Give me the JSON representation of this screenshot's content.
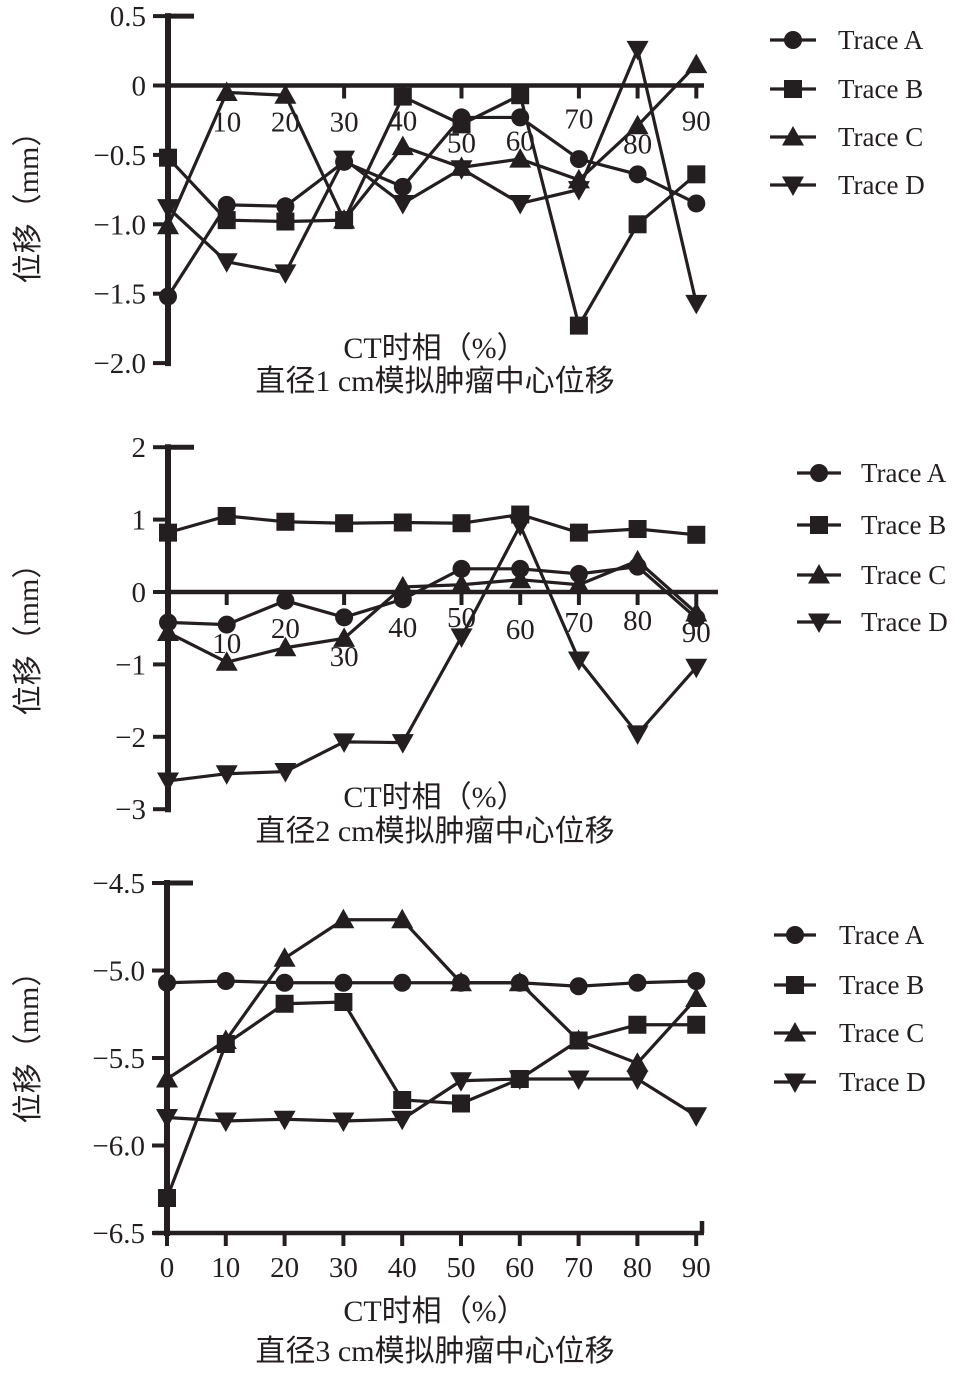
{
  "page": {
    "ink": "#231f20",
    "background": "#ffffff"
  },
  "chart_data": [
    {
      "type": "line",
      "title": "直径1 cm模拟肿瘤中心位移",
      "xlabel": "CT时相（%）",
      "ylabel": "位移（mm）",
      "x": [
        0,
        10,
        20,
        30,
        40,
        50,
        60,
        70,
        80,
        90
      ],
      "xtick_labels": [
        "10",
        "20",
        "30",
        "40",
        "50",
        "60",
        "70",
        "80",
        "90"
      ],
      "ylim": [
        -2.0,
        0.5
      ],
      "yticks": [
        0.5,
        0,
        -0.5,
        -1.0,
        -1.5,
        -2.0
      ],
      "ytick_labels": [
        "0.5",
        "0",
        "−0.5",
        "−1.0",
        "−1.5",
        "−2.0"
      ],
      "grid": false,
      "legend_position": "right",
      "series": [
        {
          "name": "Trace A",
          "marker": "circle",
          "values": [
            -1.52,
            -0.86,
            -0.87,
            -0.55,
            -0.73,
            -0.23,
            -0.23,
            -0.53,
            -0.64,
            -0.85
          ]
        },
        {
          "name": "Trace B",
          "marker": "square",
          "values": [
            -0.52,
            -0.97,
            -0.98,
            -0.97,
            -0.08,
            -0.28,
            -0.07,
            -1.73,
            -1.0,
            -0.64
          ]
        },
        {
          "name": "Trace C",
          "marker": "triangle-up",
          "values": [
            -1.01,
            -0.05,
            -0.07,
            -0.97,
            -0.44,
            -0.59,
            -0.53,
            -0.68,
            -0.29,
            0.15
          ]
        },
        {
          "name": "Trace D",
          "marker": "triangle-down",
          "values": [
            -0.88,
            -1.27,
            -1.35,
            -0.53,
            -0.85,
            -0.6,
            -0.85,
            -0.75,
            0.26,
            -1.57
          ]
        }
      ]
    },
    {
      "type": "line",
      "title": "直径2 cm模拟肿瘤中心位移",
      "xlabel": "CT时相（%）",
      "ylabel": "位移（mm）",
      "x": [
        0,
        10,
        20,
        30,
        40,
        50,
        60,
        70,
        80,
        90
      ],
      "xtick_labels": [
        "10",
        "20",
        "30",
        "40",
        "50",
        "60",
        "70",
        "80",
        "90"
      ],
      "ylim": [
        -3,
        2
      ],
      "yticks": [
        2,
        1,
        0,
        -1,
        -2,
        -3
      ],
      "ytick_labels": [
        "2",
        "1",
        "0",
        "−1",
        "−2",
        "−3"
      ],
      "grid": false,
      "legend_position": "right",
      "series": [
        {
          "name": "Trace A",
          "marker": "circle",
          "values": [
            -0.42,
            -0.45,
            -0.12,
            -0.35,
            -0.1,
            0.32,
            0.32,
            0.25,
            0.35,
            -0.36
          ]
        },
        {
          "name": "Trace B",
          "marker": "square",
          "values": [
            0.82,
            1.05,
            0.97,
            0.95,
            0.96,
            0.95,
            1.07,
            0.82,
            0.87,
            0.79
          ]
        },
        {
          "name": "Trace C",
          "marker": "triangle-up",
          "values": [
            -0.56,
            -0.97,
            -0.77,
            -0.64,
            0.07,
            0.1,
            0.17,
            0.1,
            0.43,
            -0.29
          ]
        },
        {
          "name": "Trace D",
          "marker": "triangle-down",
          "values": [
            -2.61,
            -2.51,
            -2.48,
            -2.07,
            -2.08,
            -0.62,
            0.92,
            -0.94,
            -1.96,
            -1.04
          ]
        }
      ]
    },
    {
      "type": "line",
      "title": "直径3 cm模拟肿瘤中心位移",
      "xlabel": "CT时相（%）",
      "ylabel": "位移（mm）",
      "x": [
        0,
        10,
        20,
        30,
        40,
        50,
        60,
        70,
        80,
        90
      ],
      "xtick_labels": [
        "0",
        "10",
        "20",
        "30",
        "40",
        "50",
        "60",
        "70",
        "80",
        "90"
      ],
      "ylim": [
        -6.5,
        -4.5
      ],
      "yticks": [
        -4.5,
        -5.0,
        -5.5,
        -6.0,
        -6.5
      ],
      "ytick_labels": [
        "−4.5",
        "−5.0",
        "−5.5",
        "−6.0",
        "−6.5"
      ],
      "grid": false,
      "legend_position": "right",
      "series": [
        {
          "name": "Trace A",
          "marker": "circle",
          "values": [
            -5.07,
            -5.06,
            -5.07,
            -5.07,
            -5.07,
            -5.07,
            -5.07,
            -5.09,
            -5.07,
            -5.06
          ]
        },
        {
          "name": "Trace B",
          "marker": "square",
          "values": [
            -6.3,
            -5.42,
            -5.19,
            -5.18,
            -5.74,
            -5.76,
            -5.62,
            -5.4,
            -5.31,
            -5.31
          ]
        },
        {
          "name": "Trace C",
          "marker": "triangle-up",
          "values": [
            -5.62,
            -5.4,
            -4.93,
            -4.71,
            -4.71,
            -5.07,
            -5.07,
            -5.4,
            -5.53,
            -5.16
          ]
        },
        {
          "name": "Trace D",
          "marker": "triangle-down",
          "values": [
            -5.84,
            -5.86,
            -5.85,
            -5.86,
            -5.85,
            -5.63,
            -5.62,
            -5.62,
            -5.62,
            -5.83
          ]
        }
      ]
    }
  ]
}
